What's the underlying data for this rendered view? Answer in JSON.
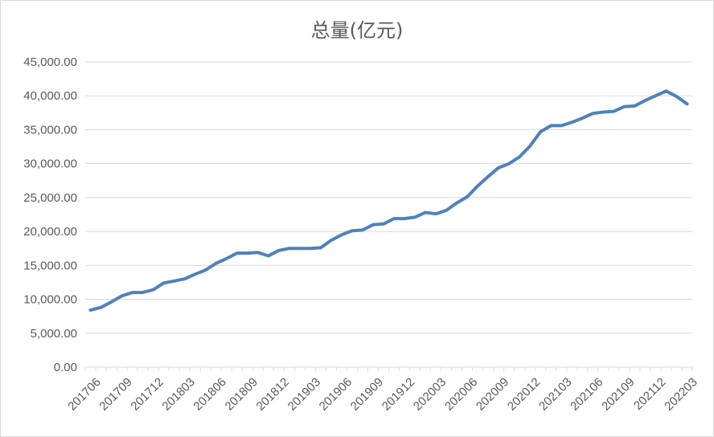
{
  "chart_data": {
    "type": "line",
    "title": "总量(亿元)",
    "xlabel": "",
    "ylabel": "",
    "ylim": [
      0,
      45000
    ],
    "y_ticks": [
      "0.00",
      "5,000.00",
      "10,000.00",
      "15,000.00",
      "20,000.00",
      "25,000.00",
      "30,000.00",
      "35,000.00",
      "40,000.00",
      "45,000.00"
    ],
    "x_tick_labels": [
      "201706",
      "201709",
      "201712",
      "201803",
      "201806",
      "201809",
      "201812",
      "201903",
      "201906",
      "201909",
      "201912",
      "202003",
      "202006",
      "202009",
      "202012",
      "202103",
      "202106",
      "202109",
      "202112",
      "202203"
    ],
    "grid": "horizontal",
    "legend": "none",
    "line_color": "#4f81bd",
    "x": [
      "201706",
      "201707",
      "201708",
      "201709",
      "201710",
      "201711",
      "201712",
      "201801",
      "201802",
      "201803",
      "201804",
      "201805",
      "201806",
      "201807",
      "201808",
      "201809",
      "201810",
      "201811",
      "201812",
      "201901",
      "201902",
      "201903",
      "201904",
      "201905",
      "201906",
      "201907",
      "201908",
      "201909",
      "201910",
      "201911",
      "201912",
      "202001",
      "202002",
      "202003",
      "202004",
      "202005",
      "202006",
      "202007",
      "202008",
      "202009",
      "202010",
      "202011",
      "202012",
      "202101",
      "202102",
      "202103",
      "202104",
      "202105",
      "202106",
      "202107",
      "202108",
      "202109",
      "202110",
      "202111",
      "202112",
      "202201",
      "202202",
      "202203"
    ],
    "values": [
      8400,
      8800,
      9600,
      10500,
      11000,
      11000,
      11400,
      12400,
      12700,
      13000,
      13700,
      14300,
      15300,
      16000,
      16800,
      16800,
      16900,
      16400,
      17200,
      17500,
      17500,
      17500,
      17600,
      18700,
      19500,
      20100,
      20200,
      21000,
      21100,
      21900,
      21900,
      22100,
      22800,
      22600,
      23100,
      24200,
      25100,
      26700,
      28100,
      29400,
      30000,
      31000,
      32600,
      34700,
      35600,
      35600,
      36100,
      36700,
      37400,
      37600,
      37700,
      38400,
      38500,
      39300,
      40000,
      40700,
      39900,
      38800
    ]
  }
}
